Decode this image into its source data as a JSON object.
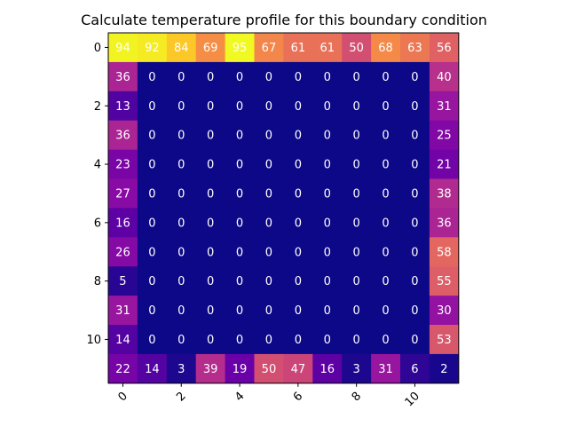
{
  "chart_data": {
    "type": "heatmap",
    "title": "Calculate temperature profile for this boundary condition",
    "xlabel": "",
    "ylabel": "",
    "colormap": "plasma",
    "vmin": 0,
    "vmax": 95,
    "x_ticks": [
      0,
      2,
      4,
      6,
      8,
      10
    ],
    "y_ticks": [
      0,
      2,
      4,
      6,
      8,
      10
    ],
    "x_tick_rotation": -45,
    "grid": false,
    "values": [
      [
        94,
        92,
        84,
        69,
        95,
        67,
        61,
        61,
        50,
        68,
        63,
        56
      ],
      [
        36,
        0,
        0,
        0,
        0,
        0,
        0,
        0,
        0,
        0,
        0,
        40
      ],
      [
        13,
        0,
        0,
        0,
        0,
        0,
        0,
        0,
        0,
        0,
        0,
        31
      ],
      [
        36,
        0,
        0,
        0,
        0,
        0,
        0,
        0,
        0,
        0,
        0,
        25
      ],
      [
        23,
        0,
        0,
        0,
        0,
        0,
        0,
        0,
        0,
        0,
        0,
        21
      ],
      [
        27,
        0,
        0,
        0,
        0,
        0,
        0,
        0,
        0,
        0,
        0,
        38
      ],
      [
        16,
        0,
        0,
        0,
        0,
        0,
        0,
        0,
        0,
        0,
        0,
        36
      ],
      [
        26,
        0,
        0,
        0,
        0,
        0,
        0,
        0,
        0,
        0,
        0,
        58
      ],
      [
        5,
        0,
        0,
        0,
        0,
        0,
        0,
        0,
        0,
        0,
        0,
        55
      ],
      [
        31,
        0,
        0,
        0,
        0,
        0,
        0,
        0,
        0,
        0,
        0,
        30
      ],
      [
        14,
        0,
        0,
        0,
        0,
        0,
        0,
        0,
        0,
        0,
        0,
        53
      ],
      [
        22,
        14,
        3,
        39,
        19,
        50,
        47,
        16,
        3,
        31,
        6,
        2
      ]
    ]
  }
}
